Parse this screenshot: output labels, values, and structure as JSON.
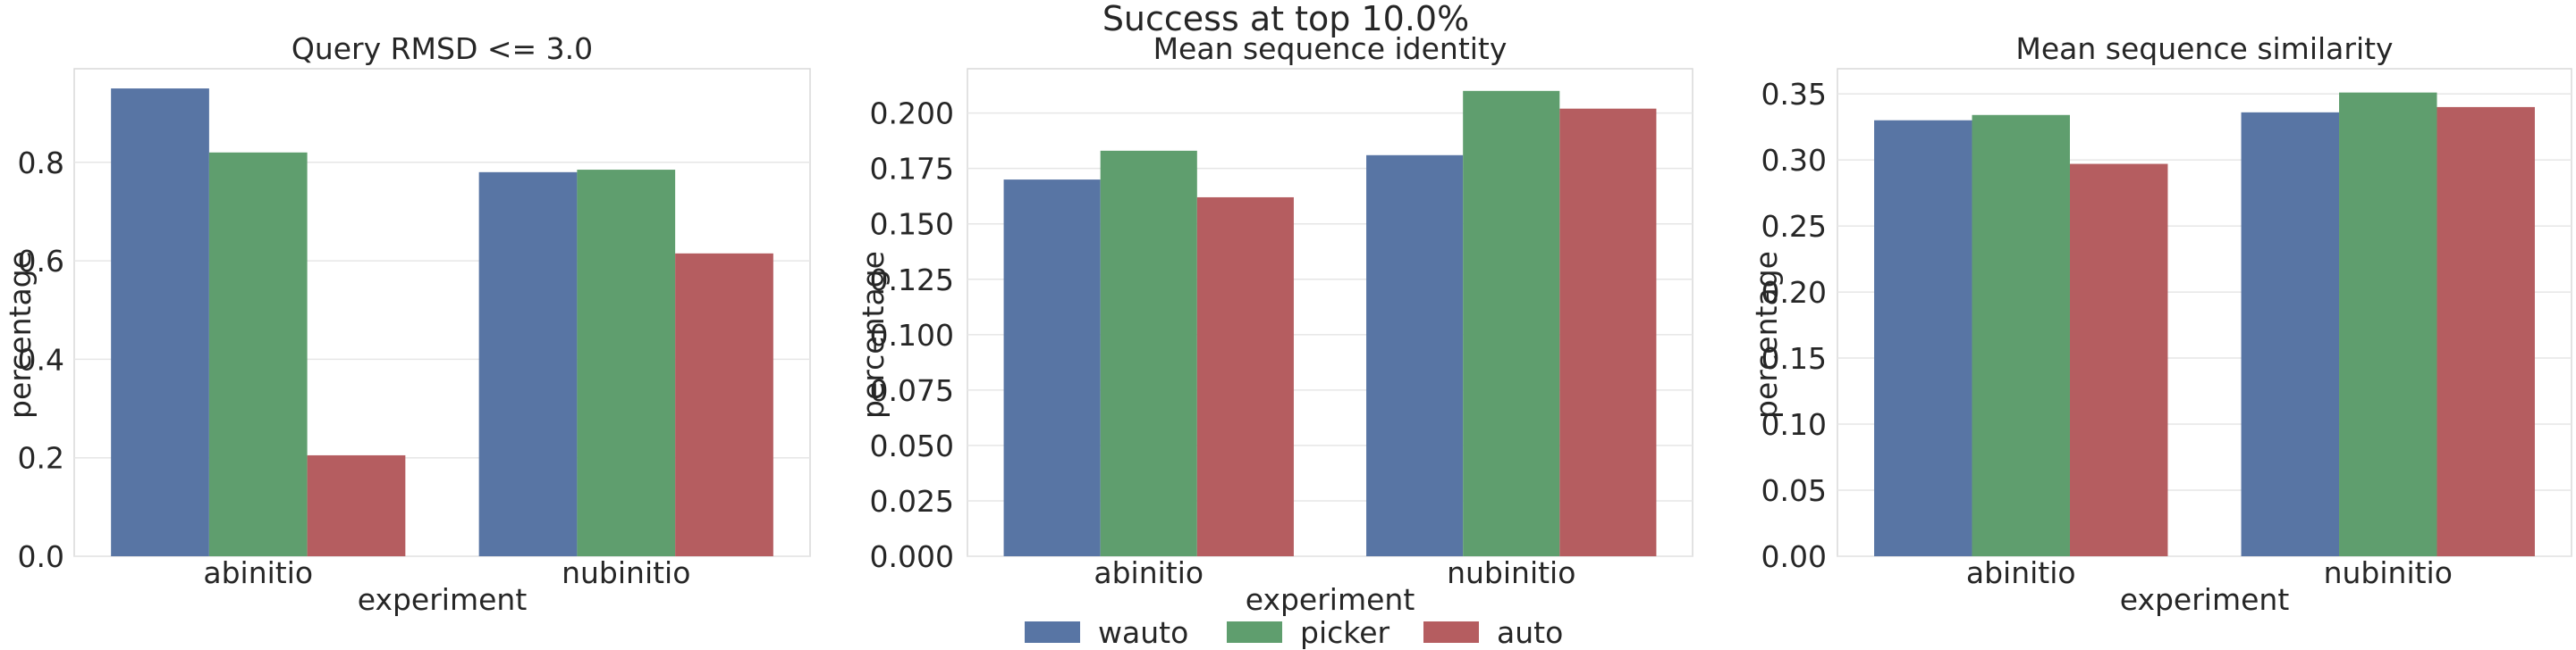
{
  "suptitle": "Success at top 10.0%",
  "colors": {
    "wauto": "#5875a4",
    "picker": "#5f9e6e",
    "auto": "#b55d60",
    "grid": "#e6e6e6",
    "axes_edge": "#d9d9d9",
    "text": "#262626"
  },
  "legend": {
    "placement": "bottom-center",
    "entries": [
      {
        "label": "wauto",
        "color": "#5875a4"
      },
      {
        "label": "picker",
        "color": "#5f9e6e"
      },
      {
        "label": "auto",
        "color": "#b55d60"
      }
    ]
  },
  "chart_data": [
    {
      "type": "bar",
      "title": "Query RMSD <= 3.0",
      "xlabel": "experiment",
      "ylabel": "percentage",
      "categories": [
        "abinitio",
        "nubinitio"
      ],
      "series": [
        {
          "name": "wauto",
          "values": [
            0.95,
            0.78
          ]
        },
        {
          "name": "picker",
          "values": [
            0.82,
            0.785
          ]
        },
        {
          "name": "auto",
          "values": [
            0.205,
            0.615
          ]
        }
      ],
      "ylim": [
        0,
        0.99
      ],
      "yticks": [
        0.0,
        0.2,
        0.4,
        0.6,
        0.8
      ],
      "ytick_labels": [
        "0.0",
        "0.2",
        "0.4",
        "0.6",
        "0.8"
      ],
      "grid": true
    },
    {
      "type": "bar",
      "title": "Mean sequence identity",
      "xlabel": "experiment",
      "ylabel": "percentage",
      "categories": [
        "abinitio",
        "nubinitio"
      ],
      "series": [
        {
          "name": "wauto",
          "values": [
            0.17,
            0.181
          ]
        },
        {
          "name": "picker",
          "values": [
            0.183,
            0.21
          ]
        },
        {
          "name": "auto",
          "values": [
            0.162,
            0.202
          ]
        }
      ],
      "ylim": [
        0,
        0.22
      ],
      "yticks": [
        0.0,
        0.025,
        0.05,
        0.075,
        0.1,
        0.125,
        0.15,
        0.175,
        0.2
      ],
      "ytick_labels": [
        "0.000",
        "0.025",
        "0.050",
        "0.075",
        "0.100",
        "0.125",
        "0.150",
        "0.175",
        "0.200"
      ],
      "grid": true
    },
    {
      "type": "bar",
      "title": "Mean sequence similarity",
      "xlabel": "experiment",
      "ylabel": "percentage",
      "categories": [
        "abinitio",
        "nubinitio"
      ],
      "series": [
        {
          "name": "wauto",
          "values": [
            0.33,
            0.336
          ]
        },
        {
          "name": "picker",
          "values": [
            0.334,
            0.351
          ]
        },
        {
          "name": "auto",
          "values": [
            0.297,
            0.34
          ]
        }
      ],
      "ylim": [
        0,
        0.369
      ],
      "yticks": [
        0.0,
        0.05,
        0.1,
        0.15,
        0.2,
        0.25,
        0.3,
        0.35
      ],
      "ytick_labels": [
        "0.00",
        "0.05",
        "0.10",
        "0.15",
        "0.20",
        "0.25",
        "0.30",
        "0.35"
      ],
      "grid": true
    }
  ]
}
